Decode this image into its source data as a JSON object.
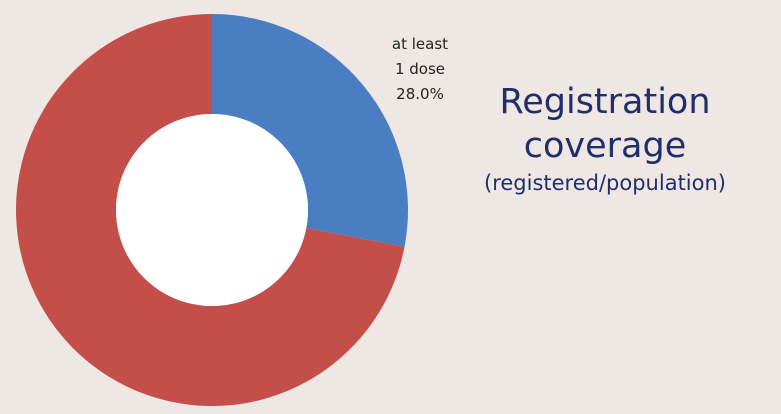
{
  "chart_data": {
    "type": "pie",
    "style": "donut",
    "slices": [
      {
        "label": "at least 1 dose",
        "value": 28.0,
        "value_text": "28.0%",
        "color": "#4a7ec2"
      },
      {
        "label": "",
        "value": 72.0,
        "color": "#c44e4a"
      }
    ],
    "labels": {
      "slice_line1": "at least",
      "slice_line2": "1 dose",
      "slice_value": "28.0%"
    },
    "title_line1": "Registration",
    "title_line2": "coverage",
    "subtitle": "(registered/population)"
  }
}
